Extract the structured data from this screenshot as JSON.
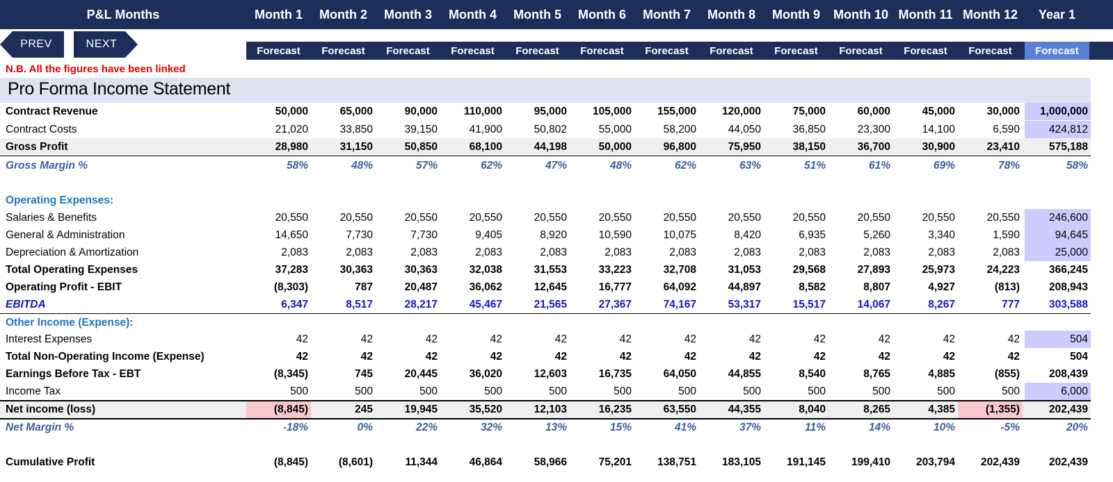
{
  "header": {
    "title": "P&L Months",
    "months": [
      "Month 1",
      "Month 2",
      "Month 3",
      "Month 4",
      "Month 5",
      "Month 6",
      "Month 7",
      "Month 8",
      "Month 9",
      "Month 10",
      "Month 11",
      "Month 12",
      "Year 1"
    ],
    "forecast_label": "Forecast"
  },
  "nav": {
    "prev_label": "PREV",
    "next_label": "NEXT"
  },
  "note": "N.B. All the figures have been linked",
  "section_title": "Pro Forma Income Statement",
  "colors": {
    "header_navy": "#1b2f5a",
    "year_header": "#5b7fd6",
    "section_band": "#dce4f1",
    "input_highlight": "#ccccff",
    "loss_highlight": "#f7c9cc",
    "note_red": "#e00000",
    "ebitda_blue": "#1414c8"
  },
  "rows": [
    {
      "label": "Contract Revenue",
      "values": [
        "50,000",
        "65,000",
        "90,000",
        "110,000",
        "95,000",
        "105,000",
        "155,000",
        "120,000",
        "75,000",
        "60,000",
        "45,000",
        "30,000",
        "1,000,000"
      ]
    },
    {
      "label": "Contract Costs",
      "values": [
        "21,020",
        "33,850",
        "39,150",
        "41,900",
        "50,802",
        "55,000",
        "58,200",
        "44,050",
        "36,850",
        "23,300",
        "14,100",
        "6,590",
        "424,812"
      ]
    },
    {
      "label": "Gross Profit",
      "values": [
        "28,980",
        "31,150",
        "50,850",
        "68,100",
        "44,198",
        "50,000",
        "96,800",
        "75,950",
        "38,150",
        "36,700",
        "30,900",
        "23,410",
        "575,188"
      ]
    },
    {
      "label": "Gross Margin %",
      "values": [
        "58%",
        "48%",
        "57%",
        "62%",
        "47%",
        "48%",
        "62%",
        "63%",
        "51%",
        "61%",
        "69%",
        "78%",
        "58%"
      ]
    },
    {
      "label": "Operating Expenses:",
      "values": []
    },
    {
      "label": "Salaries & Benefits",
      "values": [
        "20,550",
        "20,550",
        "20,550",
        "20,550",
        "20,550",
        "20,550",
        "20,550",
        "20,550",
        "20,550",
        "20,550",
        "20,550",
        "20,550",
        "246,600"
      ]
    },
    {
      "label": "General & Administration",
      "values": [
        "14,650",
        "7,730",
        "7,730",
        "9,405",
        "8,920",
        "10,590",
        "10,075",
        "8,420",
        "6,935",
        "5,260",
        "3,340",
        "1,590",
        "94,645"
      ]
    },
    {
      "label": "Depreciation & Amortization",
      "values": [
        "2,083",
        "2,083",
        "2,083",
        "2,083",
        "2,083",
        "2,083",
        "2,083",
        "2,083",
        "2,083",
        "2,083",
        "2,083",
        "2,083",
        "25,000"
      ]
    },
    {
      "label": "Total Operating Expenses",
      "values": [
        "37,283",
        "30,363",
        "30,363",
        "32,038",
        "31,553",
        "33,223",
        "32,708",
        "31,053",
        "29,568",
        "27,893",
        "25,973",
        "24,223",
        "366,245"
      ]
    },
    {
      "label": "Operating Profit - EBIT",
      "values": [
        "(8,303)",
        "787",
        "20,487",
        "36,062",
        "12,645",
        "16,777",
        "64,092",
        "44,897",
        "8,582",
        "8,807",
        "4,927",
        "(813)",
        "208,943"
      ]
    },
    {
      "label": "EBITDA",
      "values": [
        "6,347",
        "8,517",
        "28,217",
        "45,467",
        "21,565",
        "27,367",
        "74,167",
        "53,317",
        "15,517",
        "14,067",
        "8,267",
        "777",
        "303,588"
      ]
    },
    {
      "label": "Other Income (Expense):",
      "values": []
    },
    {
      "label": "Interest Expenses",
      "values": [
        "42",
        "42",
        "42",
        "42",
        "42",
        "42",
        "42",
        "42",
        "42",
        "42",
        "42",
        "42",
        "504"
      ]
    },
    {
      "label": "Total Non-Operating Income (Expense)",
      "values": [
        "42",
        "42",
        "42",
        "42",
        "42",
        "42",
        "42",
        "42",
        "42",
        "42",
        "42",
        "42",
        "504"
      ]
    },
    {
      "label": "Earnings Before Tax - EBT",
      "values": [
        "(8,345)",
        "745",
        "20,445",
        "36,020",
        "12,603",
        "16,735",
        "64,050",
        "44,855",
        "8,540",
        "8,765",
        "4,885",
        "(855)",
        "208,439"
      ]
    },
    {
      "label": "Income Tax",
      "values": [
        "500",
        "500",
        "500",
        "500",
        "500",
        "500",
        "500",
        "500",
        "500",
        "500",
        "500",
        "500",
        "6,000"
      ]
    },
    {
      "label": "Net income (loss)",
      "values": [
        "(8,845)",
        "245",
        "19,945",
        "35,520",
        "12,103",
        "16,235",
        "63,550",
        "44,355",
        "8,040",
        "8,265",
        "4,385",
        "(1,355)",
        "202,439"
      ]
    },
    {
      "label": "Net Margin %",
      "values": [
        "-18%",
        "0%",
        "22%",
        "32%",
        "13%",
        "15%",
        "41%",
        "37%",
        "11%",
        "14%",
        "10%",
        "-5%",
        "20%"
      ]
    },
    {
      "label": "Cumulative Profit",
      "values": [
        "(8,845)",
        "(8,601)",
        "11,344",
        "46,864",
        "58,966",
        "75,201",
        "138,751",
        "183,105",
        "191,145",
        "199,410",
        "203,794",
        "202,439",
        "202,439"
      ]
    }
  ]
}
